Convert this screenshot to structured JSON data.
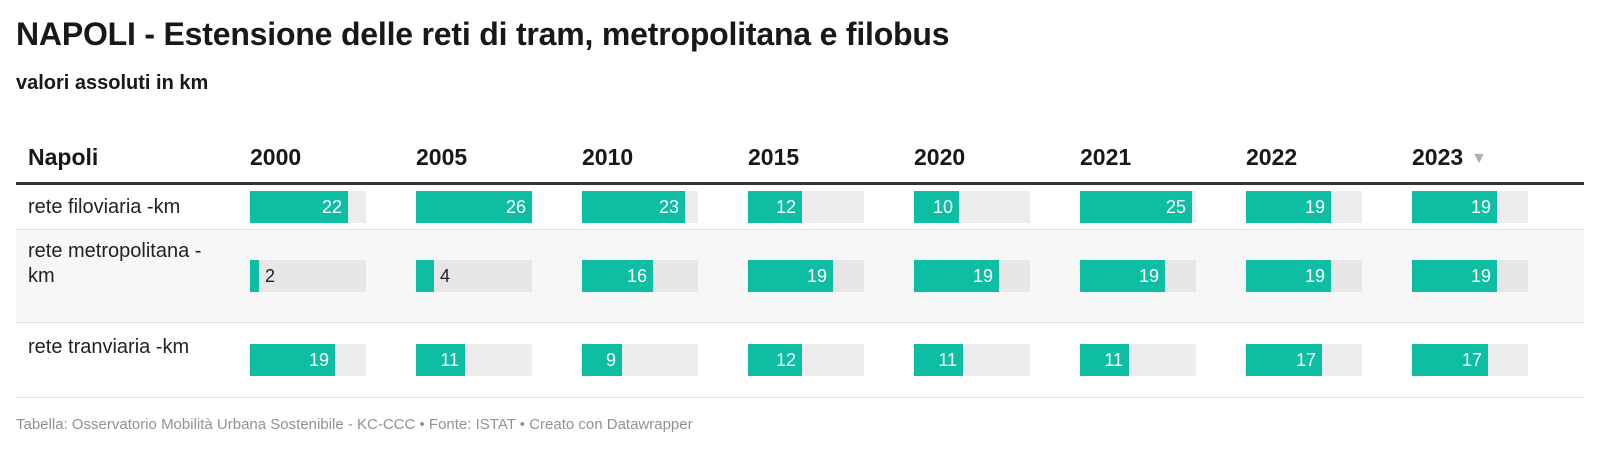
{
  "header": {
    "title": "NAPOLI - Estensione delle reti di tram, metropolitana e filobus",
    "subtitle": "valori assoluti in km"
  },
  "table": {
    "first_column": "Napoli",
    "sort_icon": "sort-descending-icon",
    "sorted_column": "2023"
  },
  "chart_data": {
    "type": "table",
    "columns": [
      "2000",
      "2005",
      "2010",
      "2015",
      "2020",
      "2021",
      "2022",
      "2023"
    ],
    "max": 26,
    "rows": [
      {
        "label": "rete filoviaria -km",
        "values": [
          22,
          26,
          23,
          12,
          10,
          25,
          19,
          19
        ]
      },
      {
        "label": "rete metropolitana -km",
        "values": [
          2,
          4,
          16,
          19,
          19,
          19,
          19,
          19
        ]
      },
      {
        "label": "rete tranviaria -km",
        "values": [
          19,
          11,
          9,
          12,
          11,
          11,
          17,
          17
        ]
      }
    ],
    "bar_color": "#0ebea3",
    "track_color": "#ececec"
  },
  "footer": {
    "text": "Tabella: Osservatorio Mobilità Urbana Sostenibile - KC-CCC • Fonte: ISTAT • Creato con Datawrapper"
  }
}
